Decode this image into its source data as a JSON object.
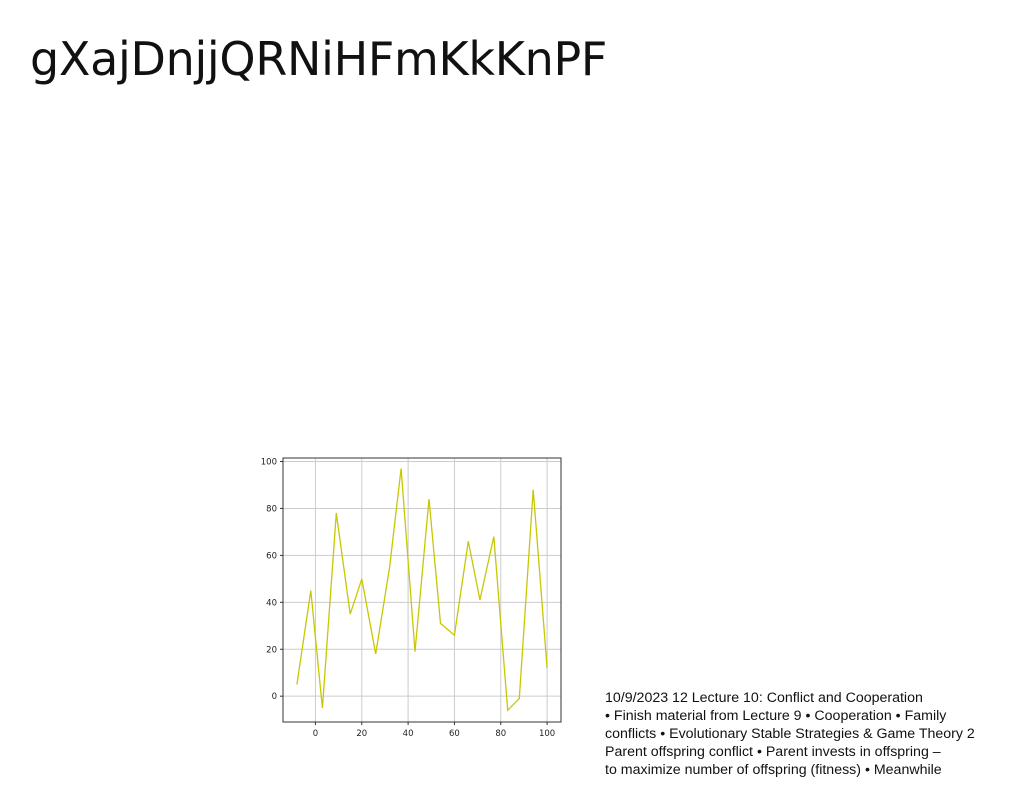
{
  "slide": {
    "title": "gXajDnjjQRNiHFmKkKnPF",
    "notes": [
      "10/9/2023 12 Lecture 10: Conflict and Cooperation",
      "• Finish material from Lecture 9 • Cooperation • Family",
      "conflicts • Evolutionary Stable Strategies & Game Theory 2",
      "Parent offspring conflict • Parent invests in offspring –",
      "to maximize number of offspring (fitness) • Meanwhile"
    ]
  },
  "chart_data": {
    "type": "line",
    "title": "",
    "xlabel": "",
    "ylabel": "",
    "x": [
      -8,
      -2,
      3,
      9,
      15,
      20,
      26,
      32,
      37,
      43,
      49,
      54,
      60,
      66,
      71,
      77,
      83,
      88,
      94,
      100
    ],
    "series": [
      {
        "values": [
          5,
          45,
          -5,
          78,
          35,
          50,
          18,
          55,
          97,
          19,
          84,
          31,
          26,
          66,
          41,
          68,
          -6,
          -1,
          88,
          12
        ]
      }
    ],
    "xlim": [
      -14,
      106
    ],
    "ylim": [
      -11,
      101.5
    ],
    "xticks": [
      0,
      20,
      40,
      60,
      80,
      100
    ],
    "yticks": [
      0,
      20,
      40,
      60,
      80,
      100
    ],
    "grid": true,
    "line_color": "#c8c800"
  }
}
